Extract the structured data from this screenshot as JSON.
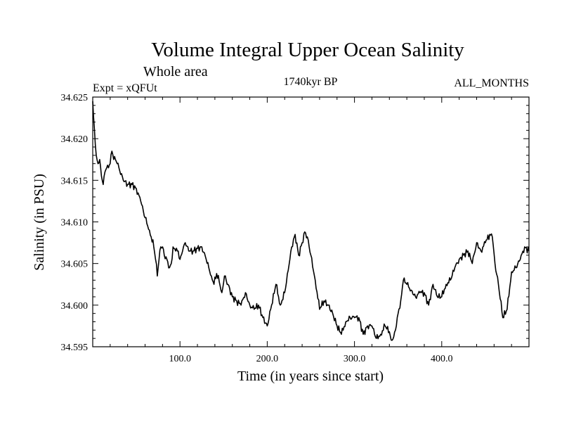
{
  "chart_data": {
    "type": "line",
    "title": "Volume Integral Upper Ocean Salinity",
    "subtitle": "Whole area",
    "experiment": "Expt = xQFUt",
    "period": "1740kyr BP",
    "season": "ALL_MONTHS",
    "xlabel": "Time (in years since start)",
    "ylabel": "Salinity (in PSU)",
    "xlim": [
      0,
      500
    ],
    "ylim": [
      34.595,
      34.625
    ],
    "x_ticks": [
      100,
      200,
      300,
      400
    ],
    "x_tick_labels": [
      "100.0",
      "200.0",
      "300.0",
      "400.0"
    ],
    "y_ticks": [
      34.595,
      34.6,
      34.605,
      34.61,
      34.615,
      34.62,
      34.625
    ],
    "y_tick_labels": [
      "34.595",
      "34.600",
      "34.605",
      "34.610",
      "34.615",
      "34.620",
      "34.625"
    ],
    "series": [
      {
        "name": "Salinity",
        "x": [
          0,
          2,
          4,
          6,
          8,
          10,
          12,
          14,
          16,
          18,
          20,
          22,
          24,
          26,
          28,
          30,
          35,
          40,
          45,
          50,
          55,
          60,
          65,
          70,
          72,
          74,
          76,
          78,
          80,
          82,
          85,
          88,
          90,
          92,
          95,
          98,
          100,
          103,
          106,
          110,
          115,
          120,
          125,
          130,
          133,
          136,
          139,
          142,
          145,
          148,
          151,
          155,
          160,
          165,
          170,
          175,
          180,
          185,
          190,
          195,
          200,
          205,
          210,
          215,
          220,
          225,
          228,
          232,
          236,
          240,
          243,
          246,
          250,
          255,
          260,
          265,
          270,
          275,
          280,
          285,
          290,
          295,
          300,
          305,
          310,
          315,
          320,
          325,
          330,
          335,
          340,
          342,
          345,
          348,
          350,
          353,
          356,
          360,
          365,
          370,
          375,
          380,
          385,
          390,
          395,
          400,
          405,
          410,
          415,
          420,
          425,
          430,
          435,
          440,
          445,
          450,
          455,
          458,
          461,
          465,
          470,
          475,
          480,
          485,
          490,
          495,
          500
        ],
        "y": [
          34.6245,
          34.621,
          34.618,
          34.617,
          34.6175,
          34.6155,
          34.6145,
          34.616,
          34.6165,
          34.6165,
          34.617,
          34.6185,
          34.6175,
          34.6175,
          34.617,
          34.6165,
          34.615,
          34.6145,
          34.6145,
          34.614,
          34.6125,
          34.6105,
          34.609,
          34.607,
          34.6055,
          34.6035,
          34.6055,
          34.607,
          34.607,
          34.606,
          34.6055,
          34.6045,
          34.605,
          34.607,
          34.6065,
          34.6065,
          34.6055,
          34.6065,
          34.6075,
          34.6065,
          34.6065,
          34.6068,
          34.607,
          34.6055,
          34.6045,
          34.6035,
          34.6025,
          34.6038,
          34.6028,
          34.6015,
          34.6035,
          34.6025,
          34.601,
          34.6005,
          34.6,
          34.6015,
          34.6,
          34.5995,
          34.6,
          34.5985,
          34.5975,
          34.6,
          34.6025,
          34.6,
          34.6015,
          34.6048,
          34.607,
          34.6085,
          34.606,
          34.6075,
          34.6088,
          34.6082,
          34.606,
          34.603,
          34.5995,
          34.6005,
          34.6,
          34.599,
          34.5975,
          34.5965,
          34.598,
          34.5985,
          34.5985,
          34.5985,
          34.5965,
          34.5975,
          34.5975,
          34.596,
          34.5965,
          34.5975,
          34.5968,
          34.5958,
          34.5962,
          34.5975,
          34.599,
          34.6005,
          34.603,
          34.6025,
          34.6018,
          34.601,
          34.6015,
          34.6015,
          34.6,
          34.6025,
          34.601,
          34.601,
          34.6025,
          34.603,
          34.6045,
          34.6055,
          34.606,
          34.6065,
          34.605,
          34.6075,
          34.6065,
          34.6075,
          34.6085,
          34.6082,
          34.605,
          34.6025,
          34.5985,
          34.5995,
          34.604,
          34.6045,
          34.6055,
          34.607,
          34.6065
        ]
      }
    ]
  }
}
